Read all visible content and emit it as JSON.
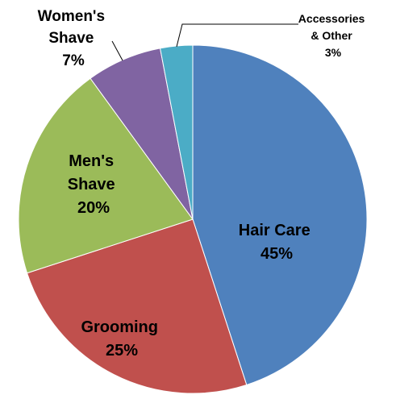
{
  "chart_data": {
    "type": "pie",
    "start_angle_deg": 0,
    "direction": "clockwise",
    "slices": [
      {
        "name": "Hair Care",
        "value": 45,
        "value_label": "45%",
        "color": "#4F81BD"
      },
      {
        "name": "Grooming",
        "value": 25,
        "value_label": "25%",
        "color": "#C0504D"
      },
      {
        "name": "Men's Shave",
        "value": 20,
        "value_label": "20%",
        "color": "#9BBB59"
      },
      {
        "name": "Women's Shave",
        "value": 7,
        "value_label": "7%",
        "color": "#8064A2"
      },
      {
        "name": "Accessories & Other",
        "value": 3,
        "value_label": "3%",
        "color": "#4BACC6"
      }
    ],
    "labels": {
      "hair_care": {
        "lines": [
          "Hair Care",
          "45%"
        ]
      },
      "grooming": {
        "lines": [
          "Grooming",
          "25%"
        ]
      },
      "mens_shave": {
        "lines": [
          "Men's",
          "Shave",
          "20%"
        ]
      },
      "womens_shave": {
        "lines": [
          "Women's",
          "Shave",
          "7%"
        ]
      },
      "accessories": {
        "lines": [
          "Accessories",
          "& Other",
          "3%"
        ]
      }
    },
    "title": "",
    "legend": "none"
  }
}
